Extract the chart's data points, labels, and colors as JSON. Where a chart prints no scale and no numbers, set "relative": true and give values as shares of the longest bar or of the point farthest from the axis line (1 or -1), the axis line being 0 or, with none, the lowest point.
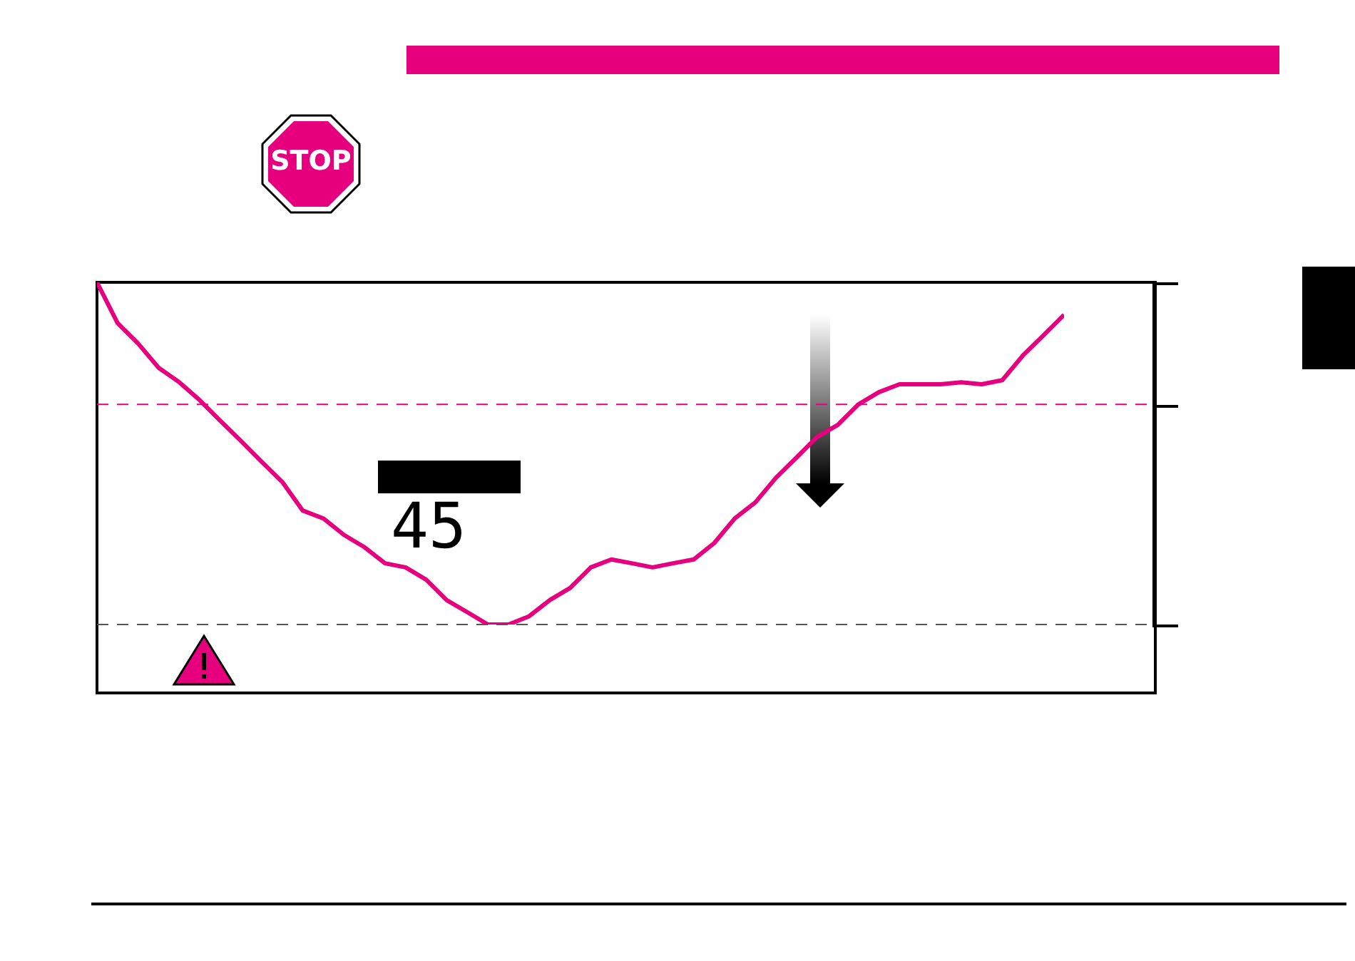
{
  "chart_data": {
    "type": "line",
    "relative": true,
    "color": "#e6007e",
    "marker": "none",
    "categories": [
      null,
      null,
      null,
      null,
      null,
      null,
      null,
      null,
      null,
      null,
      null,
      null,
      null,
      null,
      null,
      null,
      null,
      null,
      null,
      null,
      null,
      null,
      null,
      null,
      null,
      null,
      null,
      null,
      null,
      null,
      null,
      null,
      null,
      null,
      null,
      null,
      null,
      null,
      null,
      null,
      null,
      null,
      null,
      null,
      null,
      null,
      null,
      null
    ],
    "values": [
      1.0,
      0.881,
      0.821,
      0.75,
      0.708,
      0.655,
      0.595,
      0.536,
      0.476,
      0.417,
      0.333,
      0.31,
      0.262,
      0.226,
      0.179,
      0.167,
      0.131,
      0.071,
      0.036,
      0.0,
      0.0,
      0.024,
      0.071,
      0.107,
      0.167,
      0.19,
      0.179,
      0.167,
      0.179,
      0.19,
      0.238,
      0.31,
      0.357,
      0.429,
      0.488,
      0.548,
      0.583,
      0.643,
      0.679,
      0.702,
      0.702,
      0.702,
      0.708,
      0.702,
      0.714,
      0.786,
      0.845,
      0.905
    ],
    "ref_lines": [
      {
        "axis": "y",
        "value": 0.643,
        "color": "#e6007e",
        "line_style": "dashed"
      },
      {
        "axis": "y",
        "value": 0,
        "color": "#555555",
        "line_style": "dashed"
      }
    ],
    "annotations": [
      "STOP",
      "45"
    ]
  }
}
